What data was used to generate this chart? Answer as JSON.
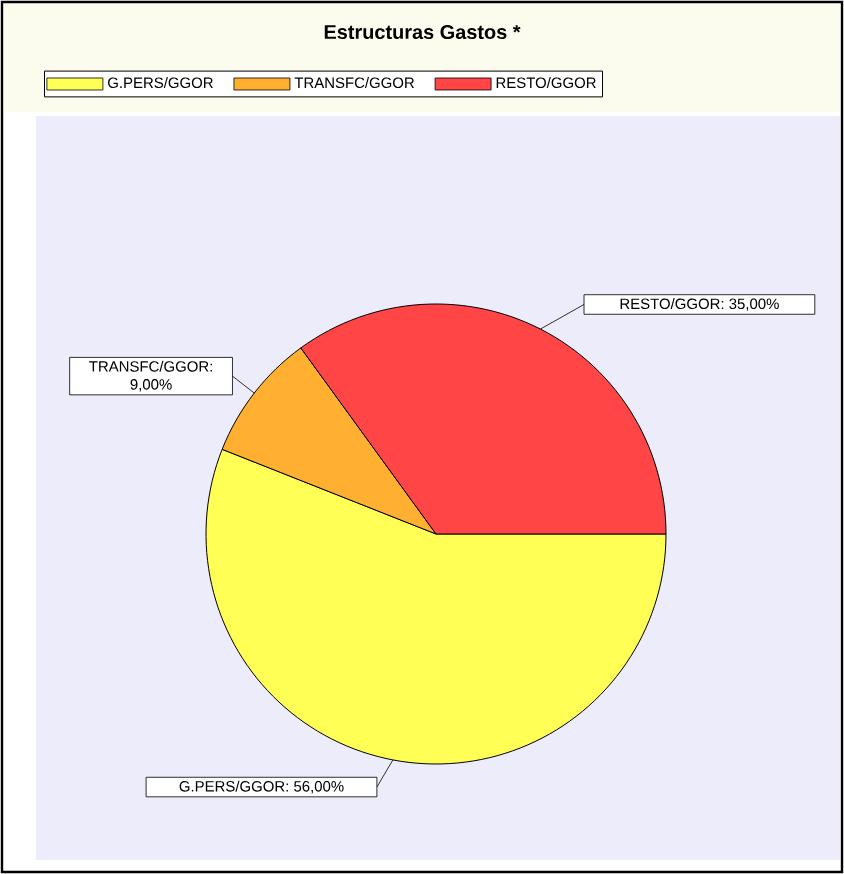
{
  "chart_data": {
    "type": "pie",
    "title": "Estructuras Gastos *",
    "categories": [
      "G.PERS/GGOR",
      "TRANSFC/GGOR",
      "RESTO/GGOR"
    ],
    "values": [
      56,
      9,
      35
    ],
    "value_labels": [
      "G.PERS/GGOR: 56,00%",
      "TRANSFC/GGOR: 9,00%",
      "RESTO/GGOR: 35,00%"
    ],
    "colors": [
      "#ffff55",
      "#ffb030",
      "#ff4545"
    ],
    "legend": "top"
  }
}
